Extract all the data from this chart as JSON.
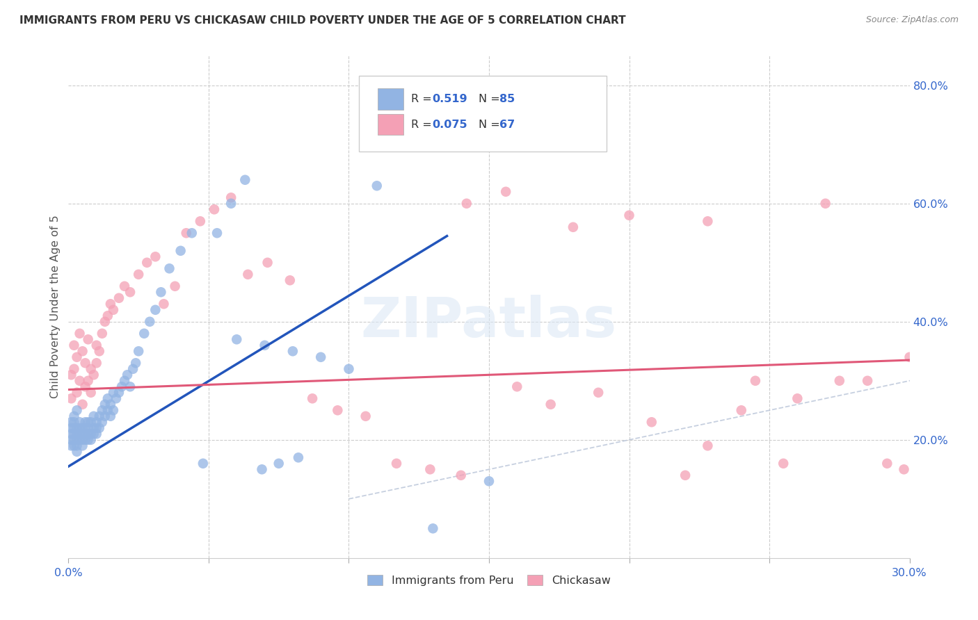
{
  "title": "IMMIGRANTS FROM PERU VS CHICKASAW CHILD POVERTY UNDER THE AGE OF 5 CORRELATION CHART",
  "source": "Source: ZipAtlas.com",
  "ylabel": "Child Poverty Under the Age of 5",
  "xlim": [
    0.0,
    0.3
  ],
  "ylim": [
    0.0,
    0.85
  ],
  "x_tick_positions": [
    0.0,
    0.05,
    0.1,
    0.15,
    0.2,
    0.25,
    0.3
  ],
  "x_tick_labels": [
    "0.0%",
    "",
    "",
    "",
    "",
    "",
    "30.0%"
  ],
  "y_tick_positions": [
    0.0,
    0.2,
    0.4,
    0.6,
    0.8
  ],
  "y_tick_labels": [
    "",
    "20.0%",
    "40.0%",
    "60.0%",
    "80.0%"
  ],
  "blue_R": "0.519",
  "blue_N": "85",
  "pink_R": "0.075",
  "pink_N": "67",
  "blue_color": "#92b4e3",
  "pink_color": "#f4a0b5",
  "blue_line_color": "#2255bb",
  "pink_line_color": "#e05878",
  "diagonal_color": "#b8c4d8",
  "watermark": "ZIPatlas",
  "legend_labels": [
    "Immigrants from Peru",
    "Chickasaw"
  ],
  "blue_scatter_x": [
    0.001,
    0.001,
    0.001,
    0.001,
    0.001,
    0.002,
    0.002,
    0.002,
    0.002,
    0.002,
    0.002,
    0.003,
    0.003,
    0.003,
    0.003,
    0.003,
    0.003,
    0.004,
    0.004,
    0.004,
    0.004,
    0.005,
    0.005,
    0.005,
    0.005,
    0.006,
    0.006,
    0.006,
    0.006,
    0.007,
    0.007,
    0.007,
    0.007,
    0.008,
    0.008,
    0.008,
    0.009,
    0.009,
    0.009,
    0.01,
    0.01,
    0.01,
    0.011,
    0.011,
    0.012,
    0.012,
    0.013,
    0.013,
    0.014,
    0.014,
    0.015,
    0.015,
    0.016,
    0.016,
    0.017,
    0.018,
    0.019,
    0.02,
    0.021,
    0.022,
    0.023,
    0.024,
    0.025,
    0.027,
    0.029,
    0.031,
    0.033,
    0.036,
    0.04,
    0.044,
    0.048,
    0.053,
    0.058,
    0.063,
    0.069,
    0.075,
    0.082,
    0.06,
    0.07,
    0.08,
    0.09,
    0.1,
    0.11,
    0.13,
    0.15
  ],
  "blue_scatter_y": [
    0.21,
    0.22,
    0.23,
    0.19,
    0.2,
    0.2,
    0.21,
    0.22,
    0.23,
    0.19,
    0.24,
    0.2,
    0.21,
    0.22,
    0.19,
    0.25,
    0.18,
    0.21,
    0.2,
    0.22,
    0.23,
    0.2,
    0.19,
    0.22,
    0.21,
    0.2,
    0.21,
    0.23,
    0.22,
    0.2,
    0.21,
    0.23,
    0.22,
    0.21,
    0.2,
    0.23,
    0.22,
    0.21,
    0.24,
    0.22,
    0.23,
    0.21,
    0.22,
    0.24,
    0.23,
    0.25,
    0.24,
    0.26,
    0.25,
    0.27,
    0.24,
    0.26,
    0.25,
    0.28,
    0.27,
    0.28,
    0.29,
    0.3,
    0.31,
    0.29,
    0.32,
    0.33,
    0.35,
    0.38,
    0.4,
    0.42,
    0.45,
    0.49,
    0.52,
    0.55,
    0.16,
    0.55,
    0.6,
    0.64,
    0.15,
    0.16,
    0.17,
    0.37,
    0.36,
    0.35,
    0.34,
    0.32,
    0.63,
    0.05,
    0.13
  ],
  "pink_scatter_x": [
    0.001,
    0.001,
    0.002,
    0.002,
    0.003,
    0.003,
    0.004,
    0.004,
    0.005,
    0.005,
    0.006,
    0.006,
    0.007,
    0.007,
    0.008,
    0.008,
    0.009,
    0.01,
    0.01,
    0.011,
    0.012,
    0.013,
    0.014,
    0.015,
    0.016,
    0.018,
    0.02,
    0.022,
    0.025,
    0.028,
    0.031,
    0.034,
    0.038,
    0.042,
    0.047,
    0.052,
    0.058,
    0.064,
    0.071,
    0.079,
    0.087,
    0.096,
    0.106,
    0.117,
    0.129,
    0.142,
    0.156,
    0.172,
    0.189,
    0.208,
    0.228,
    0.228,
    0.245,
    0.26,
    0.275,
    0.285,
    0.292,
    0.298,
    0.3,
    0.27,
    0.255,
    0.24,
    0.22,
    0.2,
    0.18,
    0.16,
    0.14
  ],
  "pink_scatter_y": [
    0.31,
    0.27,
    0.32,
    0.36,
    0.28,
    0.34,
    0.3,
    0.38,
    0.26,
    0.35,
    0.29,
    0.33,
    0.3,
    0.37,
    0.32,
    0.28,
    0.31,
    0.33,
    0.36,
    0.35,
    0.38,
    0.4,
    0.41,
    0.43,
    0.42,
    0.44,
    0.46,
    0.45,
    0.48,
    0.5,
    0.51,
    0.43,
    0.46,
    0.55,
    0.57,
    0.59,
    0.61,
    0.48,
    0.5,
    0.47,
    0.27,
    0.25,
    0.24,
    0.16,
    0.15,
    0.6,
    0.62,
    0.26,
    0.28,
    0.23,
    0.19,
    0.57,
    0.3,
    0.27,
    0.3,
    0.3,
    0.16,
    0.15,
    0.34,
    0.6,
    0.16,
    0.25,
    0.14,
    0.58,
    0.56,
    0.29,
    0.14
  ],
  "blue_line": [
    [
      0.0,
      0.155
    ],
    [
      0.135,
      0.545
    ]
  ],
  "pink_line": [
    [
      0.0,
      0.285
    ],
    [
      0.3,
      0.335
    ]
  ],
  "diag_line": [
    [
      0.1,
      0.1
    ],
    [
      0.83,
      0.83
    ]
  ]
}
